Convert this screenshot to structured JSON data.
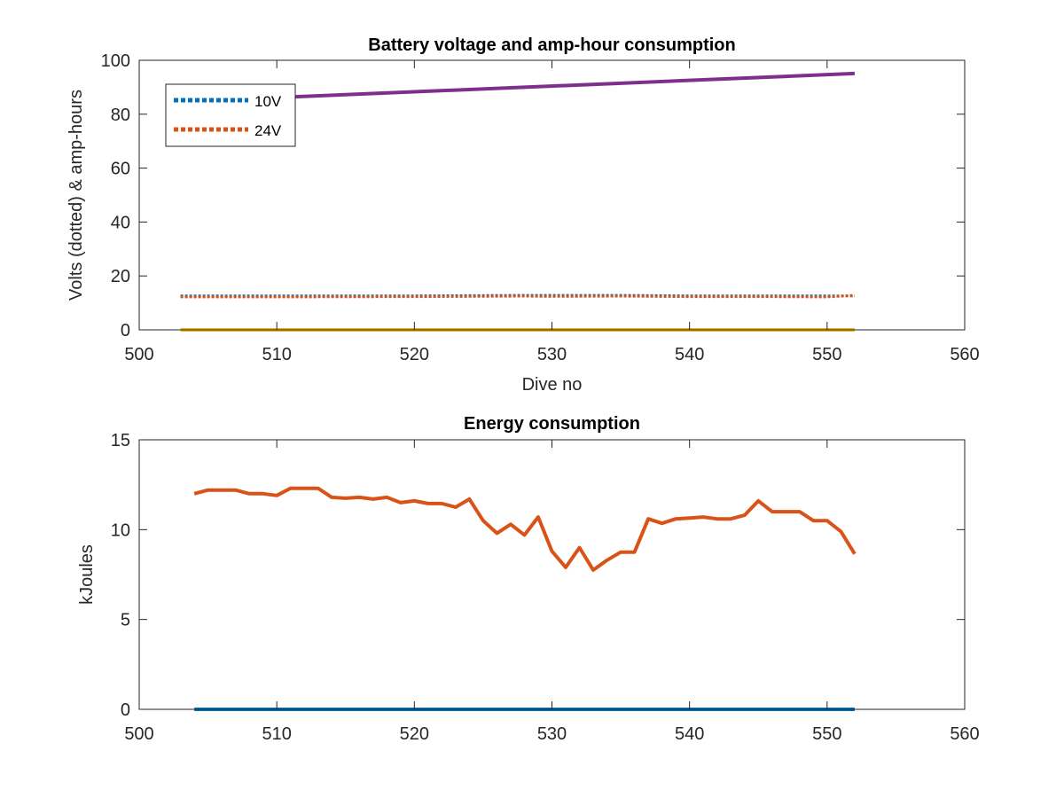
{
  "chart_data": [
    {
      "type": "line",
      "title": "Battery voltage and amp-hour consumption",
      "xlabel": "Dive no",
      "ylabel": "Volts (dotted) & amp-hours",
      "xlim": [
        500,
        560
      ],
      "ylim": [
        0,
        100
      ],
      "xticks": [
        500,
        510,
        520,
        530,
        540,
        550,
        560
      ],
      "yticks": [
        0,
        20,
        40,
        60,
        80,
        100
      ],
      "legend": {
        "placement": "top-left"
      },
      "series": [
        {
          "name": "10V",
          "style": "dotted",
          "color": "#0072BD",
          "x": [
            503,
            510,
            520,
            528,
            535,
            540,
            545,
            552
          ],
          "y": [
            12.6,
            12.6,
            12.6,
            12.8,
            12.8,
            12.6,
            12.6,
            12.6
          ]
        },
        {
          "name": "24V",
          "style": "dotted",
          "color": "#D95319",
          "x": [
            503,
            510,
            520,
            528,
            530,
            535,
            540,
            545,
            550,
            552
          ],
          "y": [
            12.2,
            12.2,
            12.3,
            12.5,
            12.4,
            12.5,
            12.3,
            12.3,
            12.2,
            12.8
          ]
        },
        {
          "style": "solid",
          "color": "#EDB120",
          "x": [
            503,
            552
          ],
          "y": [
            0,
            0
          ]
        },
        {
          "style": "solid",
          "color": "#7E2F8E",
          "x": [
            503,
            552
          ],
          "y": [
            84.7,
            95.1
          ]
        }
      ]
    },
    {
      "type": "line",
      "title": "Energy consumption",
      "xlabel": "",
      "ylabel": "kJoules",
      "xlim": [
        500,
        560
      ],
      "ylim": [
        0,
        15
      ],
      "xticks": [
        500,
        510,
        520,
        530,
        540,
        550,
        560
      ],
      "yticks": [
        0,
        5,
        10,
        15
      ],
      "series": [
        {
          "style": "solid",
          "color": "#0072BD",
          "x": [
            504,
            552
          ],
          "y": [
            0,
            0
          ]
        },
        {
          "style": "solid",
          "color": "#D95319",
          "x": [
            504,
            505,
            506,
            507,
            508,
            509,
            510,
            511,
            512,
            513,
            514,
            515,
            516,
            517,
            518,
            519,
            520,
            521,
            522,
            523,
            524,
            525,
            526,
            527,
            528,
            529,
            530,
            531,
            532,
            533,
            534,
            535,
            536,
            537,
            538,
            539,
            540,
            541,
            542,
            543,
            544,
            545,
            546,
            547,
            548,
            549,
            550,
            551,
            552
          ],
          "y": [
            12.0,
            12.2,
            12.2,
            12.2,
            12.0,
            12.0,
            11.9,
            12.3,
            12.3,
            12.3,
            11.8,
            11.75,
            11.8,
            11.7,
            11.8,
            11.5,
            11.6,
            11.45,
            11.45,
            11.25,
            11.7,
            10.5,
            9.8,
            10.3,
            9.7,
            10.7,
            8.8,
            7.9,
            9.0,
            7.75,
            8.3,
            8.75,
            8.75,
            10.6,
            10.35,
            10.6,
            10.65,
            10.7,
            10.6,
            10.6,
            10.8,
            11.6,
            11.0,
            11.0,
            11.0,
            10.5,
            10.5,
            9.9,
            8.65
          ]
        }
      ]
    }
  ]
}
